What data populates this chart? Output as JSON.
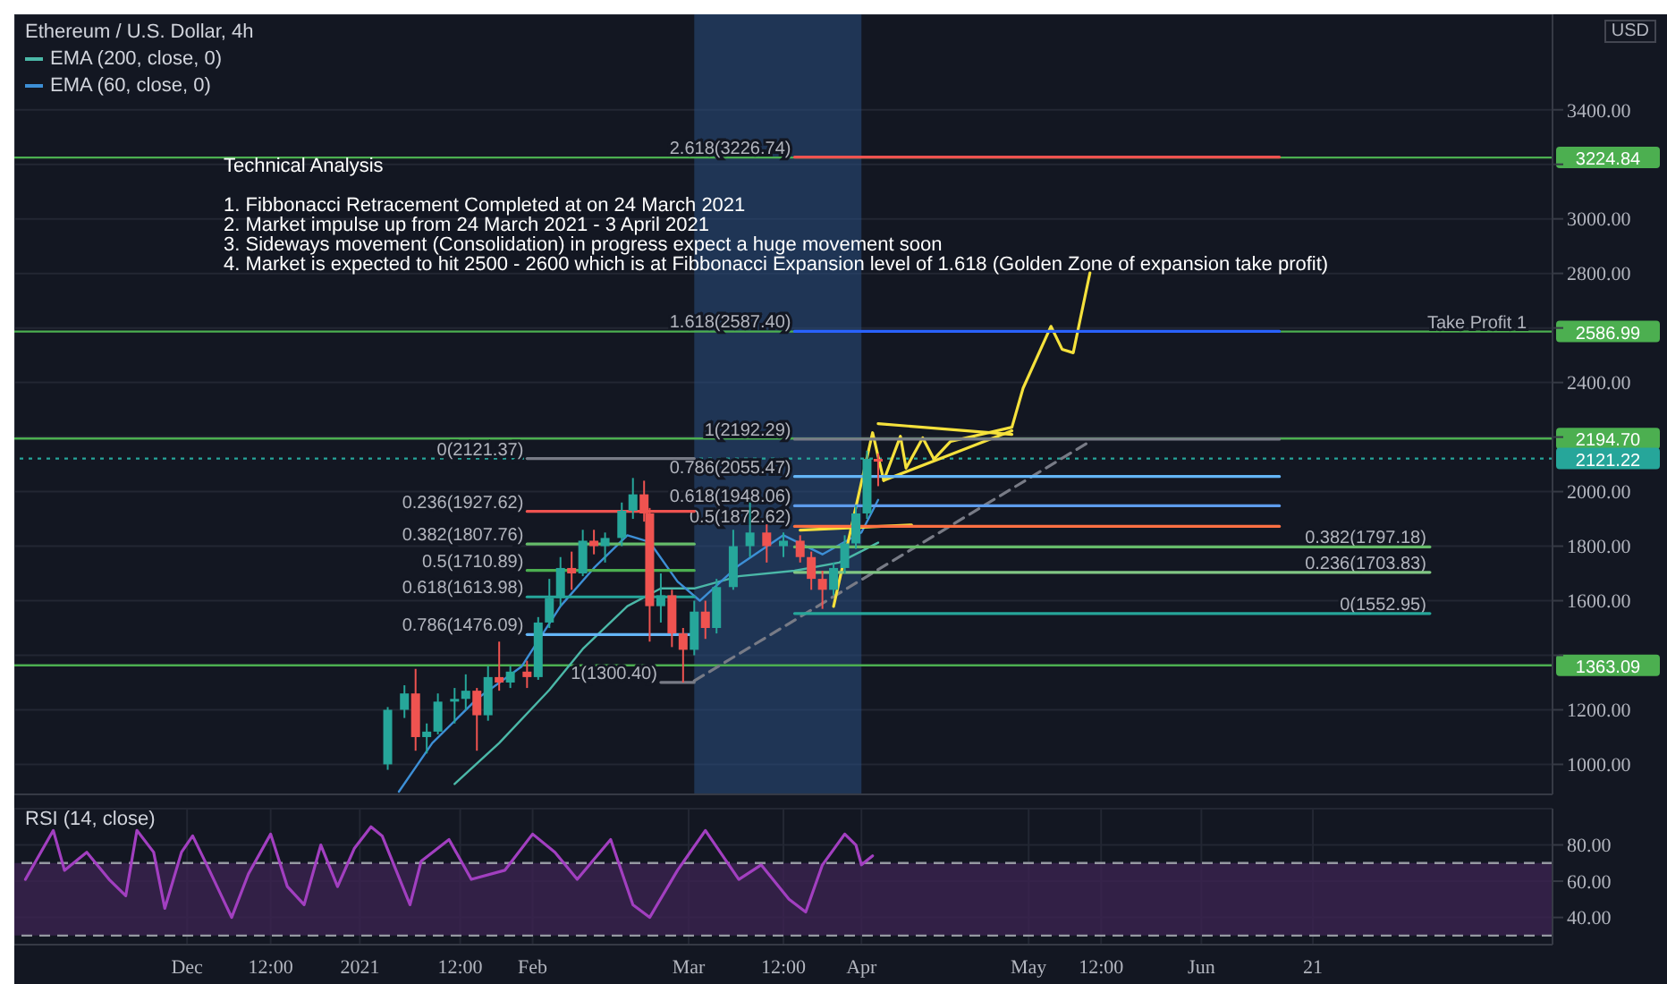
{
  "chart_data": [
    {
      "type": "candlestick",
      "title": "Ethereum / U.S. Dollar, 4h",
      "ylabel": "USD",
      "legend": "top left",
      "grid": true,
      "marker": "none",
      "tick_labels": "y",
      "xlim": [
        "2020-10-31",
        "2021-08-03"
      ],
      "ylim": [
        890,
        3750
      ],
      "xticks": [
        "2020-12-01",
        "2020-12-16",
        "2021-01-01",
        "2021-01-19",
        "2021-02-01",
        "2021-03-01",
        "2021-03-18",
        "2021-04-01",
        "2021-05-01",
        "2021-05-14",
        "2021-06-01",
        "2021-06-21"
      ],
      "yticks": [
        {
          "value": 1000,
          "label": "1000.00"
        },
        {
          "value": 1200,
          "label": "1200.00"
        },
        {
          "value": 1400,
          "label": null
        },
        {
          "value": 1600,
          "label": "1600.00"
        },
        {
          "value": 1800,
          "label": "1800.00"
        },
        {
          "value": 2000,
          "label": "2000.00"
        },
        {
          "value": 2200,
          "label": null
        },
        {
          "value": 2400,
          "label": "2400.00"
        },
        {
          "value": 2600,
          "label": null
        },
        {
          "value": 2800,
          "label": "2800.00"
        },
        {
          "value": 3000,
          "label": "3000.00"
        },
        {
          "value": 3200,
          "label": null
        },
        {
          "value": 3400,
          "label": "3400.00"
        }
      ],
      "bands": [
        {
          "axis": "x",
          "from": "2021-03-02",
          "to": "2021-04-01",
          "color": "#2a4f80"
        }
      ],
      "ref_lines": [
        {
          "axis": "y",
          "value": 3224.84,
          "label": "3224.84",
          "color": "#4caf50"
        },
        {
          "axis": "y",
          "value": 2586.99,
          "label": "2586.99",
          "color": "#4caf50"
        },
        {
          "axis": "y",
          "value": 2194.7,
          "label": "2194.70",
          "color": "#4caf50"
        },
        {
          "axis": "y",
          "value": 2121.22,
          "label": "2121.22",
          "color": "#26a69a",
          "line_style": "dotted"
        },
        {
          "axis": "y",
          "value": 1363.09,
          "label": "1363.09",
          "color": "#4caf50"
        }
      ],
      "annotations": [
        "Technical Analysis",
        "1. Fibbonacci Retracement Completed at on 24 March 2021",
        "2. Market impulse up from 24 March 2021 - 3 April 2021",
        "3. Sideways movement (Consolidation) in progress expect a huge movement soon",
        "4. Market is expected to hit 2500 - 2600 which is at Fibbonacci Expansion level of 1.618 (Golden Zone of expansion take profit)",
        {
          "text": "Take Profit 1",
          "x": "2021-07-30",
          "y": 2586.99
        },
        {
          "text": "2.618(3226.74)",
          "x": "2021-03-20",
          "y": 3226.74
        },
        {
          "text": "1.618(2587.40)",
          "x": "2021-03-20",
          "y": 2587.4
        },
        {
          "text": "1(2192.29)",
          "x": "2021-03-20",
          "y": 2192.29
        },
        {
          "text": "0.786(2055.47)",
          "x": "2021-03-20",
          "y": 2055.47
        },
        {
          "text": "0.618(1948.06)",
          "x": "2021-03-20",
          "y": 1948.06
        },
        {
          "text": "0.5(1872.62)",
          "x": "2021-03-20",
          "y": 1872.62
        },
        {
          "text": "0.382(1797.18)",
          "x": "2021-07-12",
          "y": 1797.18
        },
        {
          "text": "0.236(1703.83)",
          "x": "2021-07-12",
          "y": 1703.83
        },
        {
          "text": "0(1552.95)",
          "x": "2021-07-12",
          "y": 1552.95
        },
        {
          "text": "0(2121.37)",
          "x": "2021-01-31",
          "y": 2121.37
        },
        {
          "text": "0.236(1927.62)",
          "x": "2021-01-31",
          "y": 1927.62
        },
        {
          "text": "0.382(1807.76)",
          "x": "2021-01-31",
          "y": 1807.76
        },
        {
          "text": "0.5(1710.89)",
          "x": "2021-01-31",
          "y": 1710.89
        },
        {
          "text": "0.618(1613.98)",
          "x": "2021-01-31",
          "y": 1613.98
        },
        {
          "text": "0.786(1476.09)",
          "x": "2021-01-31",
          "y": 1476.09
        },
        {
          "text": "1(1300.40)",
          "x": "2021-02-24",
          "y": 1300.4
        }
      ],
      "series": [
        {
          "type": "line",
          "name": "EMA (200, close, 0)",
          "color": "#4bb8a8",
          "x": [
            "2021-01-18",
            "2021-01-26",
            "2021-02-04",
            "2021-02-10",
            "2021-02-18",
            "2021-02-24",
            "2021-03-02",
            "2021-03-10",
            "2021-03-20",
            "2021-03-28",
            "2021-04-04"
          ],
          "values": [
            928,
            1078,
            1273,
            1423,
            1580,
            1645,
            1645,
            1690,
            1710,
            1740,
            1813
          ]
        },
        {
          "type": "line",
          "name": "EMA (60, close, 0)",
          "color": "#3d8fd6",
          "x": [
            "2021-01-08",
            "2021-01-14",
            "2021-01-22",
            "2021-01-30",
            "2021-02-06",
            "2021-02-12",
            "2021-02-18",
            "2021-02-22",
            "2021-02-27",
            "2021-03-03",
            "2021-03-10",
            "2021-03-18",
            "2021-03-25",
            "2021-04-01",
            "2021-04-04"
          ],
          "values": [
            900,
            1078,
            1240,
            1358,
            1580,
            1720,
            1840,
            1815,
            1670,
            1600,
            1730,
            1840,
            1770,
            1850,
            1970
          ]
        },
        {
          "type": "line",
          "color": "#787b86",
          "line_style": "dashed",
          "x": [
            "2021-03-02",
            "2021-05-12"
          ],
          "values": [
            1306,
            2184
          ]
        },
        {
          "type": "line",
          "color": "#f5e13c",
          "x": [
            "2021-03-27",
            "2021-04-03",
            "2021-04-05",
            "2021-04-08",
            "2021-04-09",
            "2021-04-12",
            "2021-04-14",
            "2021-04-17",
            "2021-04-28",
            "2021-04-30",
            "2021-05-05",
            "2021-05-07",
            "2021-05-09",
            "2021-05-12"
          ],
          "values": [
            1579,
            2216,
            2041,
            2203,
            2086,
            2197,
            2119,
            2184,
            2236,
            2379,
            2606,
            2522,
            2509,
            2802
          ]
        },
        {
          "type": "line",
          "color": "#f5e13c",
          "x": [
            "2021-04-04",
            "2021-04-28"
          ],
          "values": [
            2249,
            2210
          ]
        },
        {
          "type": "line",
          "color": "#f5e13c",
          "x": [
            "2021-04-05",
            "2021-04-28"
          ],
          "values": [
            2041,
            2223
          ]
        },
        {
          "type": "line",
          "color": "#f5e13c",
          "x": [
            "2021-03-21",
            "2021-04-10"
          ],
          "values": [
            1859,
            1878
          ]
        },
        {
          "type": "line",
          "color": "#ef5350",
          "x": [
            "2021-03-20",
            "2021-06-15"
          ],
          "values": [
            3226.74,
            3226.74
          ]
        },
        {
          "type": "line",
          "color": "#2962ff",
          "x": [
            "2021-03-20",
            "2021-06-15"
          ],
          "values": [
            2587.4,
            2587.4
          ]
        },
        {
          "type": "line",
          "color": "#787b86",
          "x": [
            "2021-03-20",
            "2021-06-15"
          ],
          "values": [
            2192.29,
            2192.29
          ]
        },
        {
          "type": "line",
          "color": "#64b5f6",
          "x": [
            "2021-03-20",
            "2021-06-15"
          ],
          "values": [
            2055.47,
            2055.47
          ]
        },
        {
          "type": "line",
          "color": "#5d9cec",
          "x": [
            "2021-03-20",
            "2021-06-15"
          ],
          "values": [
            1948.06,
            1948.06
          ]
        },
        {
          "type": "line",
          "color": "#ff7043",
          "x": [
            "2021-03-20",
            "2021-06-15"
          ],
          "values": [
            1872.62,
            1872.62
          ]
        },
        {
          "type": "line",
          "color": "#66bb6a",
          "x": [
            "2021-03-20",
            "2021-07-12"
          ],
          "values": [
            1797.18,
            1797.18
          ]
        },
        {
          "type": "line",
          "color": "#81c784",
          "x": [
            "2021-03-20",
            "2021-07-12"
          ],
          "values": [
            1703.83,
            1703.83
          ]
        },
        {
          "type": "line",
          "color": "#26a69a",
          "x": [
            "2021-03-20",
            "2021-07-12"
          ],
          "values": [
            1552.95,
            1552.95
          ]
        },
        {
          "type": "line",
          "color": "#787b86",
          "x": [
            "2021-01-31",
            "2021-03-02"
          ],
          "values": [
            2121.37,
            2121.37
          ]
        },
        {
          "type": "line",
          "color": "#ef5350",
          "x": [
            "2021-01-31",
            "2021-03-02"
          ],
          "values": [
            1927.62,
            1927.62
          ]
        },
        {
          "type": "line",
          "color": "#66bb6a",
          "x": [
            "2021-01-31",
            "2021-03-02"
          ],
          "values": [
            1807.76,
            1807.76
          ]
        },
        {
          "type": "line",
          "color": "#4caf50",
          "x": [
            "2021-01-31",
            "2021-03-02"
          ],
          "values": [
            1710.89,
            1710.89
          ]
        },
        {
          "type": "line",
          "color": "#26a69a",
          "x": [
            "2021-01-31",
            "2021-03-02"
          ],
          "values": [
            1613.98,
            1613.98
          ]
        },
        {
          "type": "line",
          "color": "#64b5f6",
          "x": [
            "2021-01-31",
            "2021-03-02"
          ],
          "values": [
            1476.09,
            1476.09
          ]
        },
        {
          "type": "line",
          "color": "#787b86",
          "x": [
            "2021-02-24",
            "2021-03-02"
          ],
          "values": [
            1300.4,
            1300.4
          ]
        },
        {
          "x": [
            "2021-01-06",
            "2021-01-09",
            "2021-01-11",
            "2021-01-13",
            "2021-01-15",
            "2021-01-18",
            "2021-01-20",
            "2021-01-22",
            "2021-01-24",
            "2021-01-26",
            "2021-01-28",
            "2021-01-31",
            "2021-02-02",
            "2021-02-04",
            "2021-02-06",
            "2021-02-08",
            "2021-02-10",
            "2021-02-12",
            "2021-02-14",
            "2021-02-17",
            "2021-02-19",
            "2021-02-21",
            "2021-02-22",
            "2021-02-24",
            "2021-02-26",
            "2021-02-28",
            "2021-03-02",
            "2021-03-04",
            "2021-03-06",
            "2021-03-09",
            "2021-03-12",
            "2021-03-15",
            "2021-03-18",
            "2021-03-21",
            "2021-03-23",
            "2021-03-25",
            "2021-03-27",
            "2021-03-29",
            "2021-03-31",
            "2021-04-02",
            "2021-04-04"
          ],
          "ohlc": [
            [
              1000,
              1210,
              980,
              1200
            ],
            [
              1200,
              1290,
              1170,
              1260
            ],
            [
              1260,
              1350,
              1050,
              1100
            ],
            [
              1100,
              1150,
              1040,
              1120
            ],
            [
              1120,
              1260,
              1110,
              1230
            ],
            [
              1230,
              1280,
              1150,
              1240
            ],
            [
              1240,
              1330,
              1200,
              1270
            ],
            [
              1270,
              1280,
              1050,
              1180
            ],
            [
              1180,
              1360,
              1160,
              1320
            ],
            [
              1320,
              1450,
              1270,
              1300
            ],
            [
              1300,
              1360,
              1280,
              1340
            ],
            [
              1340,
              1380,
              1280,
              1320
            ],
            [
              1320,
              1540,
              1310,
              1520
            ],
            [
              1520,
              1680,
              1500,
              1610
            ],
            [
              1610,
              1760,
              1580,
              1720
            ],
            [
              1720,
              1780,
              1640,
              1700
            ],
            [
              1700,
              1860,
              1690,
              1820
            ],
            [
              1820,
              1860,
              1770,
              1800
            ],
            [
              1800,
              1850,
              1740,
              1830
            ],
            [
              1830,
              1960,
              1800,
              1930
            ],
            [
              1930,
              2050,
              1900,
              1990
            ],
            [
              1990,
              2040,
              1890,
              1920
            ],
            [
              1920,
              1940,
              1450,
              1580
            ],
            [
              1580,
              1700,
              1520,
              1620
            ],
            [
              1620,
              1640,
              1430,
              1480
            ],
            [
              1480,
              1500,
              1300,
              1420
            ],
            [
              1420,
              1600,
              1400,
              1560
            ],
            [
              1560,
              1600,
              1460,
              1500
            ],
            [
              1500,
              1680,
              1480,
              1650
            ],
            [
              1650,
              1860,
              1640,
              1800
            ],
            [
              1800,
              1960,
              1760,
              1850
            ],
            [
              1850,
              1880,
              1740,
              1800
            ],
            [
              1800,
              1850,
              1760,
              1820
            ],
            [
              1820,
              1840,
              1740,
              1760
            ],
            [
              1760,
              1780,
              1640,
              1680
            ],
            [
              1680,
              1710,
              1570,
              1640
            ],
            [
              1640,
              1740,
              1620,
              1720
            ],
            [
              1720,
              1840,
              1700,
              1810
            ],
            [
              1810,
              1950,
              1790,
              1920
            ],
            [
              1920,
              2150,
              1900,
              2120
            ],
            [
              2120,
              2140,
              2020,
              2110
            ]
          ],
          "colors": [
            "#26a69a",
            "#26a69a",
            "#ef5350",
            "#26a69a",
            "#26a69a",
            "#26a69a",
            "#26a69a",
            "#ef5350",
            "#26a69a",
            "#ef5350",
            "#26a69a",
            "#ef5350",
            "#26a69a",
            "#26a69a",
            "#26a69a",
            "#ef5350",
            "#26a69a",
            "#ef5350",
            "#26a69a",
            "#26a69a",
            "#26a69a",
            "#ef5350",
            "#ef5350",
            "#26a69a",
            "#ef5350",
            "#ef5350",
            "#26a69a",
            "#ef5350",
            "#26a69a",
            "#26a69a",
            "#26a69a",
            "#ef5350",
            "#26a69a",
            "#ef5350",
            "#ef5350",
            "#ef5350",
            "#26a69a",
            "#26a69a",
            "#26a69a",
            "#26a69a",
            "#ef5350"
          ]
        }
      ]
    },
    {
      "type": "line",
      "title": "RSI (14, close)",
      "grid": true,
      "marker": "none",
      "xlim": [
        "2020-10-31",
        "2021-08-03"
      ],
      "ylim": [
        25,
        100
      ],
      "xticks": [
        {
          "value": "2020-12-01",
          "label": "Dec"
        },
        {
          "value": "2020-12-16",
          "label": "12:00"
        },
        {
          "value": "2021-01-01",
          "label": "2021"
        },
        {
          "value": "2021-01-19",
          "label": "12:00"
        },
        {
          "value": "2021-02-01",
          "label": "Feb"
        },
        {
          "value": "2021-03-01",
          "label": "Mar"
        },
        {
          "value": "2021-03-18",
          "label": "12:00"
        },
        {
          "value": "2021-04-01",
          "label": "Apr"
        },
        {
          "value": "2021-05-01",
          "label": "May"
        },
        {
          "value": "2021-05-14",
          "label": "12:00"
        },
        {
          "value": "2021-06-01",
          "label": "Jun"
        },
        {
          "value": "2021-06-21",
          "label": "21"
        }
      ],
      "yticks": [
        {
          "value": 40,
          "label": "40.00"
        },
        {
          "value": 60,
          "label": "60.00"
        },
        {
          "value": 80,
          "label": "80.00"
        }
      ],
      "bands": [
        {
          "axis": "y",
          "from": 30,
          "to": 70,
          "color": "#3b2350"
        }
      ],
      "ref_lines": [
        {
          "axis": "y",
          "value": 70,
          "color": "#9598a1",
          "line_style": "dashed"
        },
        {
          "axis": "y",
          "value": 30,
          "color": "#9598a1",
          "line_style": "dashed"
        }
      ],
      "series": [
        {
          "color": "#a23fc0",
          "x": [
            "2020-11-02",
            "2020-11-07",
            "2020-11-09",
            "2020-11-13",
            "2020-11-17",
            "2020-11-20",
            "2020-11-22",
            "2020-11-25",
            "2020-11-27",
            "2020-11-30",
            "2020-12-02",
            "2020-12-05",
            "2020-12-09",
            "2020-12-12",
            "2020-12-16",
            "2020-12-19",
            "2020-12-22",
            "2020-12-25",
            "2020-12-28",
            "2020-12-31",
            "2021-01-03",
            "2021-01-05",
            "2021-01-10",
            "2021-01-12",
            "2021-01-17",
            "2021-01-21",
            "2021-01-27",
            "2021-02-01",
            "2021-02-05",
            "2021-02-09",
            "2021-02-15",
            "2021-02-19",
            "2021-02-22",
            "2021-02-27",
            "2021-03-04",
            "2021-03-10",
            "2021-03-14",
            "2021-03-19",
            "2021-03-22",
            "2021-03-25",
            "2021-03-29",
            "2021-03-31",
            "2021-04-01",
            "2021-04-03"
          ],
          "values": [
            61,
            88,
            66,
            76,
            61,
            52,
            88,
            76,
            45,
            76,
            85,
            66,
            40,
            64,
            86,
            57,
            47,
            80,
            57,
            78,
            90,
            85,
            47,
            71,
            83,
            61,
            66,
            86,
            76,
            61,
            83,
            47,
            40,
            66,
            88,
            61,
            69,
            50,
            43,
            69,
            86,
            80,
            69,
            74
          ]
        }
      ]
    }
  ]
}
